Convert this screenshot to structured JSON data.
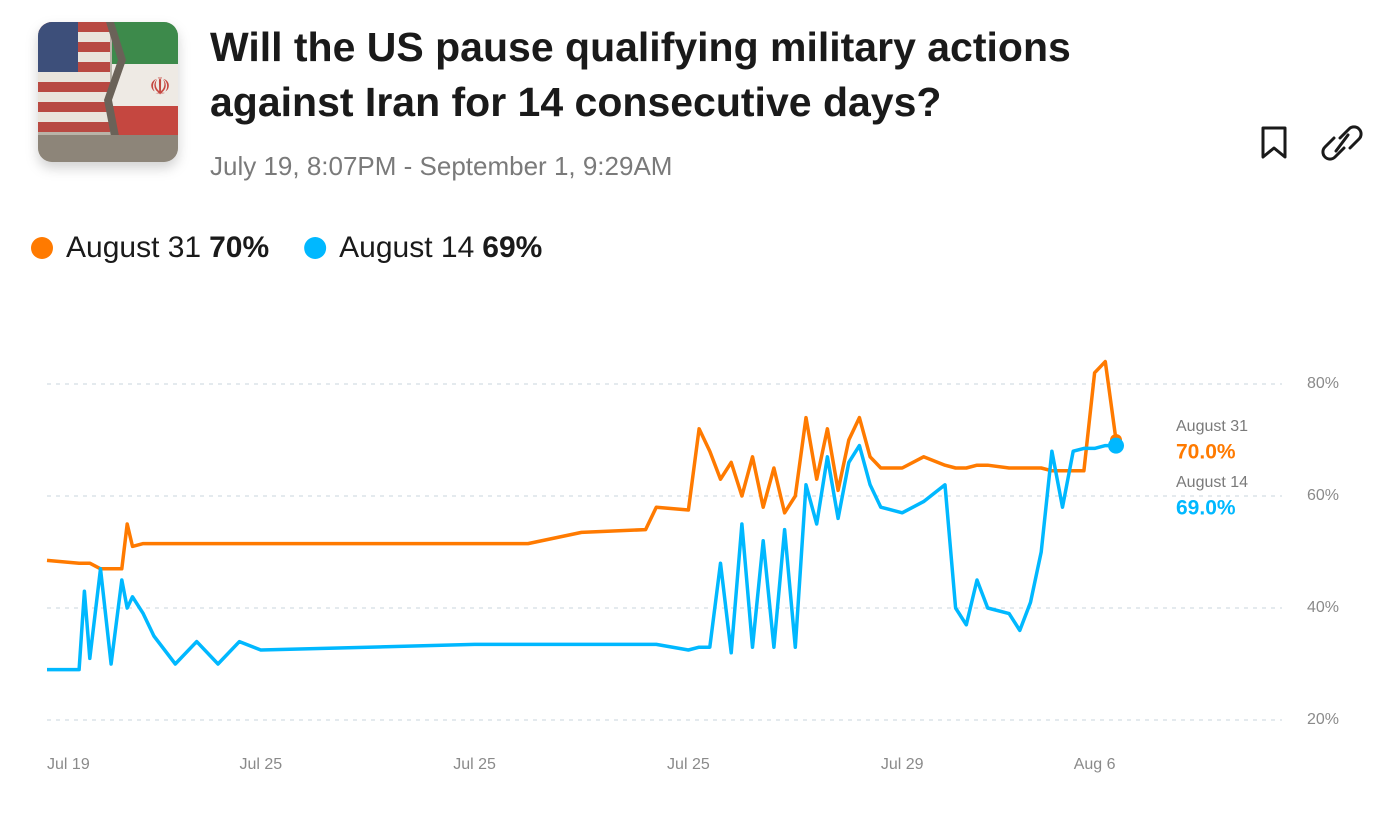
{
  "chart_data": {
    "type": "line",
    "title": [
      "Will the US pause qualifying military actions",
      "against Iran for 14 consecutive days?"
    ],
    "subtitle": "July 19, 8:07PM - September 1, 9:29AM",
    "xlim": [
      0,
      100
    ],
    "xticks": [
      {
        "value": 2,
        "label": "Jul 19"
      },
      {
        "value": 20,
        "label": "Jul 25"
      },
      {
        "value": 40,
        "label": "Jul 25"
      },
      {
        "value": 60,
        "label": "Jul 25"
      },
      {
        "value": 80,
        "label": "Jul 29"
      },
      {
        "value": 98,
        "label": "Aug 6"
      }
    ],
    "ylim": [
      16,
      86
    ],
    "yticks": [
      {
        "value": 20,
        "label": "20%"
      },
      {
        "value": 40,
        "label": "40%"
      },
      {
        "value": 60,
        "label": "60%"
      },
      {
        "value": 80,
        "label": "80%"
      }
    ],
    "grid": true,
    "x": [
      0,
      3,
      3.5,
      4,
      5,
      6,
      7,
      7.5,
      8,
      9,
      10,
      12,
      14,
      16,
      18,
      20,
      30,
      40,
      45,
      50,
      56,
      57,
      60,
      61,
      62,
      63,
      64,
      65,
      66,
      67,
      68,
      69,
      70,
      71,
      72,
      73,
      74,
      75,
      76,
      77,
      78,
      80,
      82,
      84,
      85,
      86,
      87,
      88,
      90,
      91,
      92,
      93,
      94,
      95,
      96,
      97,
      98,
      99,
      100
    ],
    "series": [
      {
        "name": "August 31",
        "color": "#ff7a00",
        "current_label": "70%",
        "end_label": "70.0%",
        "values": [
          48.5,
          48,
          48,
          48,
          47,
          47,
          47,
          55,
          51,
          51.5,
          51.5,
          51.5,
          51.5,
          51.5,
          51.5,
          51.5,
          51.5,
          51.5,
          51.5,
          53.5,
          54,
          58,
          57.5,
          72,
          68,
          63,
          66,
          60,
          67,
          58,
          65,
          57,
          60,
          74,
          63,
          72,
          61,
          70,
          74,
          67,
          65,
          65,
          67,
          65.5,
          65,
          65,
          65.5,
          65.5,
          65,
          65,
          65,
          65,
          64.5,
          64.5,
          64.5,
          64.5,
          82,
          84,
          70
        ]
      },
      {
        "name": "August 14",
        "color": "#00b8ff",
        "current_label": "69%",
        "end_label": "69.0%",
        "values": [
          29,
          29,
          43,
          31,
          47,
          30,
          45,
          40,
          42,
          39,
          35,
          30,
          34,
          30,
          34,
          32.5,
          33,
          33.5,
          33.5,
          33.5,
          33.5,
          33.5,
          32.5,
          33,
          33,
          48,
          32,
          55,
          33,
          52,
          33,
          54,
          33,
          62,
          55,
          67,
          56,
          66,
          69,
          62,
          58,
          57,
          59,
          62,
          40,
          37,
          45,
          40,
          39,
          36,
          41,
          50,
          68,
          58,
          68,
          68.5,
          68.5,
          69,
          69
        ]
      }
    ]
  }
}
